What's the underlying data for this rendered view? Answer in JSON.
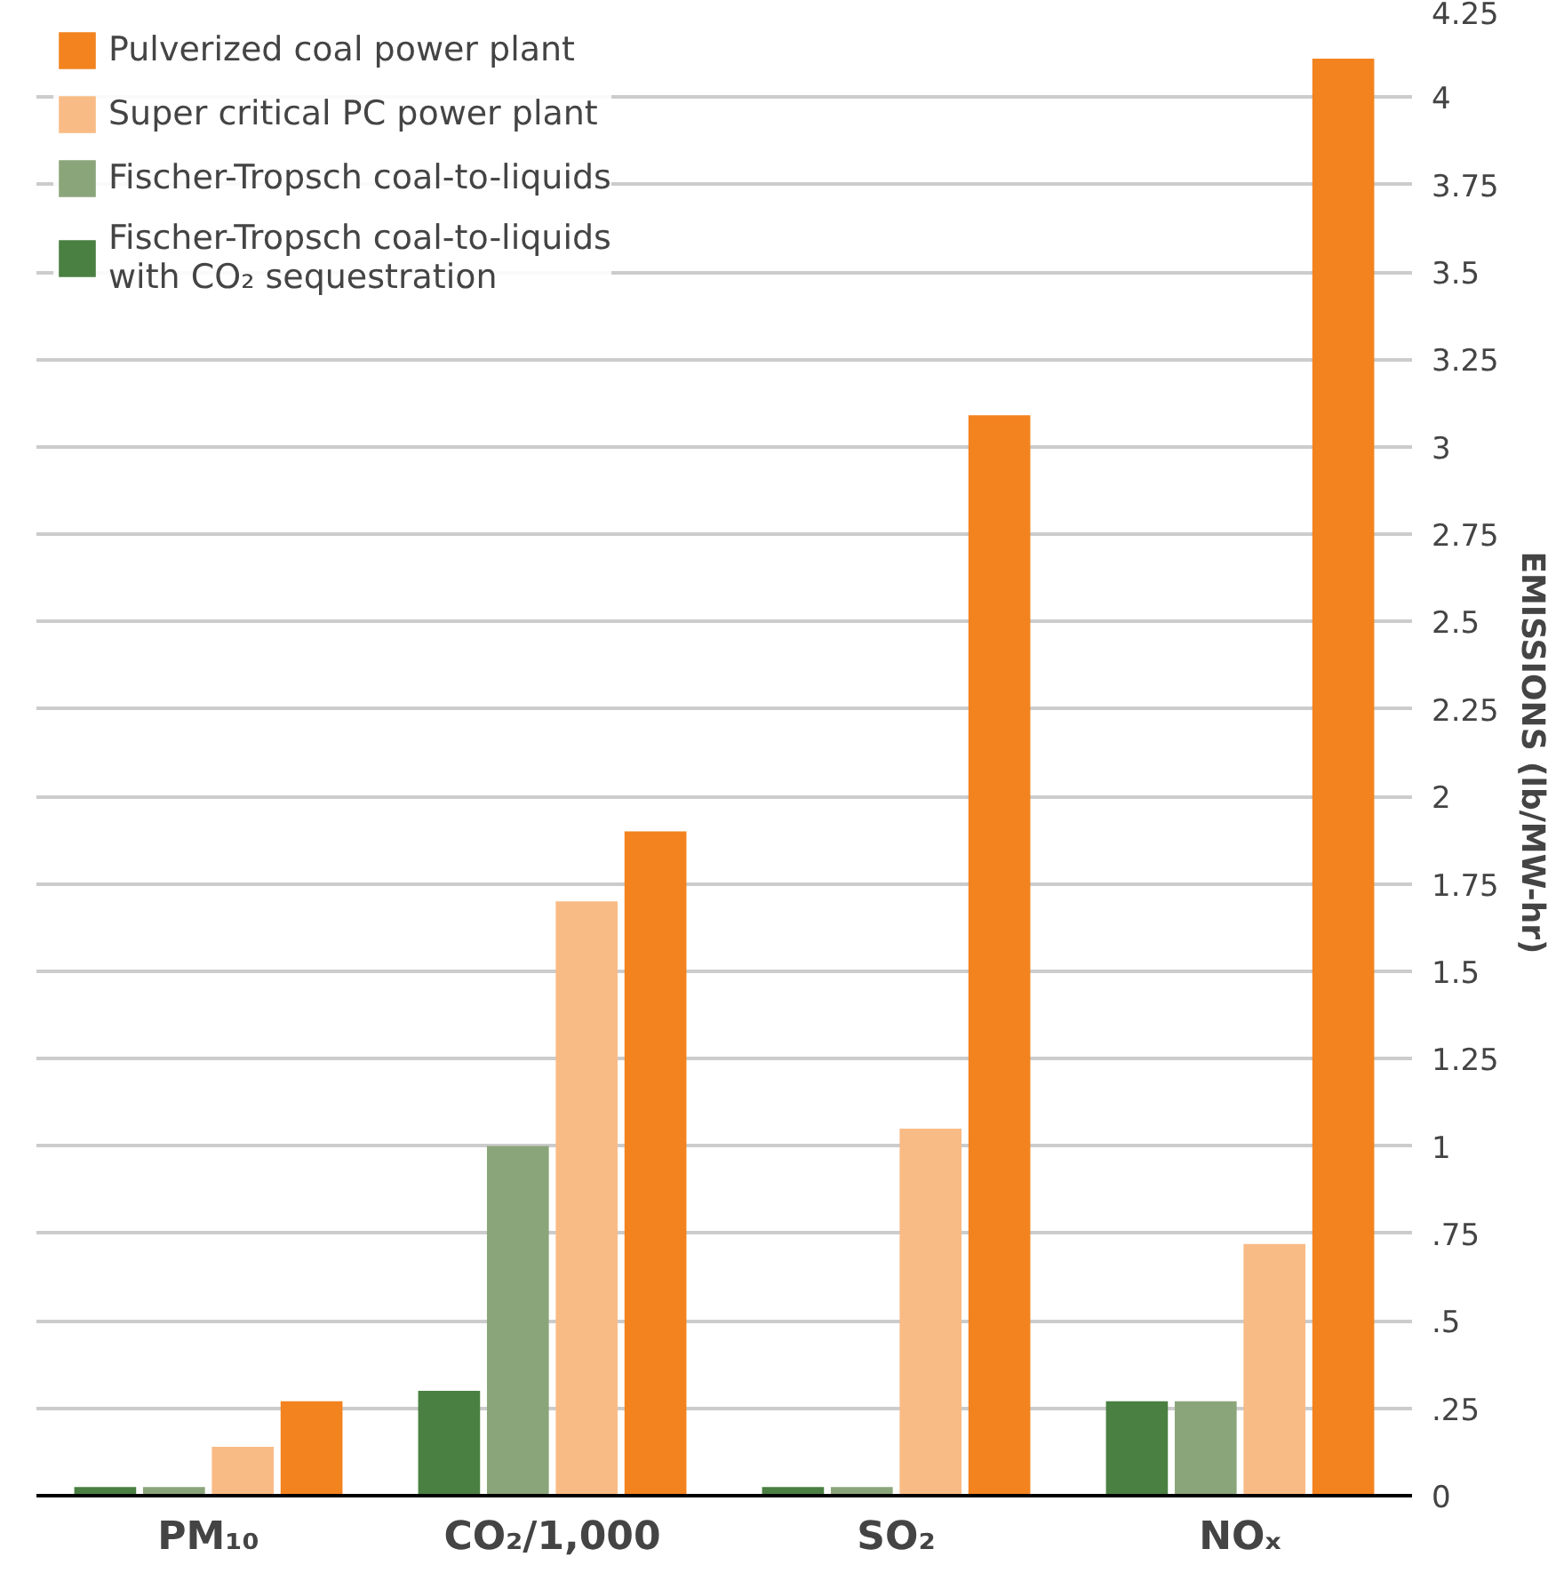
{
  "chart_data": {
    "type": "bar",
    "ylabel": "EMISSIONS (lb/MW-hr)",
    "categories": [
      "PM₁₀",
      "CO₂/1,000",
      "SO₂",
      "NOₓ"
    ],
    "series": [
      {
        "name": "Pulverized coal power plant",
        "color": "#f3831f",
        "values": [
          0.27,
          1.9,
          3.09,
          4.11
        ]
      },
      {
        "name": "Super critical PC power plant",
        "color": "#f9bb85",
        "values": [
          0.14,
          1.7,
          1.05,
          0.72
        ]
      },
      {
        "name": "Fischer-Tropsch coal-to-liquids",
        "color": "#8ba57a",
        "values": [
          0.025,
          1.0,
          0.025,
          0.27
        ]
      },
      {
        "name": "Fischer-Tropsch coal-to-liquids with CO₂ sequestration",
        "color": "#4a8042",
        "values": [
          0.025,
          0.3,
          0.025,
          0.27
        ]
      }
    ],
    "ylim": [
      0,
      4.25
    ],
    "yticks": [
      0,
      {
        "value": 0.25,
        "label": ".25"
      },
      {
        "value": 0.5,
        "label": ".5"
      },
      {
        "value": 0.75,
        "label": ".75"
      },
      1,
      1.25,
      1.5,
      1.75,
      2,
      2.25,
      2.5,
      2.75,
      3,
      3.25,
      3.5,
      3.75,
      4,
      4.25
    ],
    "grid": "y",
    "legend": "top left"
  }
}
